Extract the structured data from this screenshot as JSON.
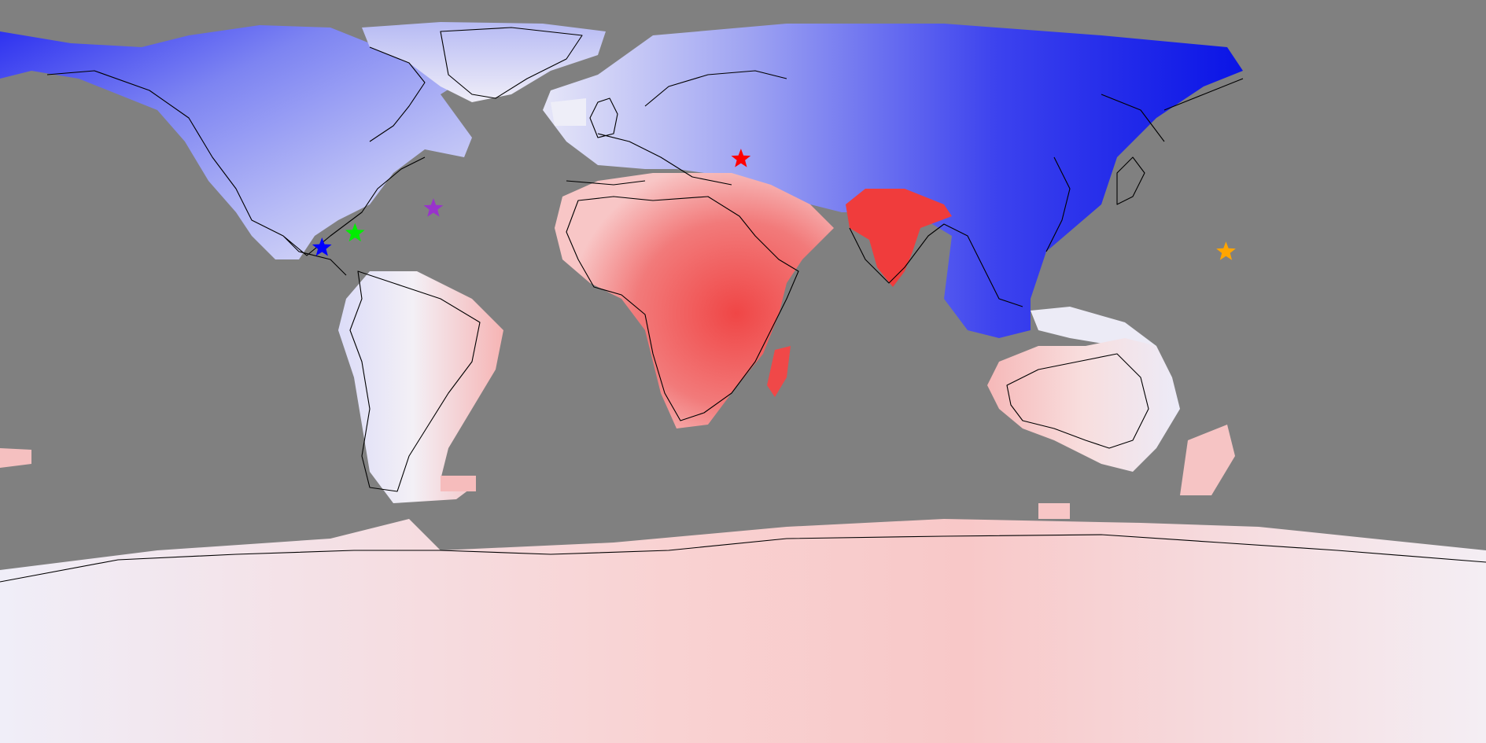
{
  "map": {
    "projection": "equirectangular",
    "background_color": "#808080",
    "ocean_color": "#808080",
    "coastline_color": "#000000",
    "scale_colors": {
      "strong_blue": "#0a14e6",
      "blue": "#3a3ff0",
      "light_blue": "#8f95f2",
      "pale_blue": "#d8daf8",
      "white": "#f4f2f8",
      "pale_red": "#f8d4d4",
      "light_red": "#f4a0a0",
      "red": "#f05050",
      "strong_red": "#f03a3a"
    },
    "markers": [
      {
        "id": "uk",
        "icon": "star-icon",
        "color": "#ff0000",
        "lon": -0.5,
        "lat": 51.5
      },
      {
        "id": "east-usa",
        "icon": "star-icon",
        "color": "#9933cc",
        "lon": -75,
        "lat": 39.5
      },
      {
        "id": "central-usa",
        "icon": "star-icon",
        "color": "#00ee00",
        "lon": -94,
        "lat": 33.5
      },
      {
        "id": "southwest-usa",
        "icon": "star-icon",
        "color": "#0000ff",
        "lon": -102,
        "lat": 30
      },
      {
        "id": "east-china",
        "icon": "star-icon",
        "color": "#ffa500",
        "lon": 117,
        "lat": 29
      }
    ]
  }
}
